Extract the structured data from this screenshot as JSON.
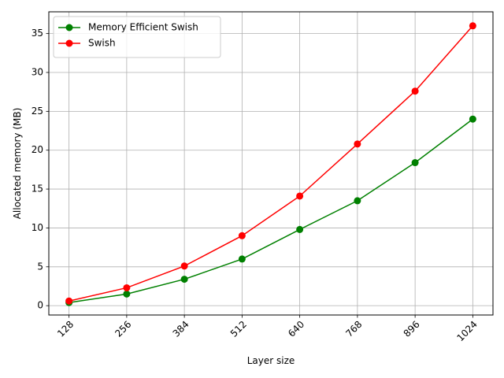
{
  "chart_data": {
    "type": "line",
    "x": [
      128,
      256,
      384,
      512,
      640,
      768,
      896,
      1024
    ],
    "x_tick_labels": [
      "128",
      "256",
      "384",
      "512",
      "640",
      "768",
      "896",
      "1024"
    ],
    "y_tick_labels": [
      "0",
      "5",
      "10",
      "15",
      "20",
      "25",
      "30",
      "35"
    ],
    "y_ticks": [
      0,
      5,
      10,
      15,
      20,
      25,
      30,
      35
    ],
    "series": [
      {
        "name": "Memory Efficient Swish",
        "color": "#008000",
        "marker": "circle",
        "values": [
          0.4,
          1.5,
          3.4,
          6.0,
          9.8,
          13.5,
          18.4,
          24.0
        ]
      },
      {
        "name": "Swish",
        "color": "#ff0000",
        "marker": "circle",
        "values": [
          0.6,
          2.3,
          5.1,
          9.0,
          14.1,
          20.8,
          27.6,
          36.0
        ]
      }
    ],
    "xlabel": "Layer size",
    "ylabel": "Allocated memory (MB)",
    "ylim": [
      -1.2,
      37.8
    ],
    "xlim": [
      83.2,
      1068.8
    ],
    "grid": true,
    "legend_position": "top-left"
  }
}
